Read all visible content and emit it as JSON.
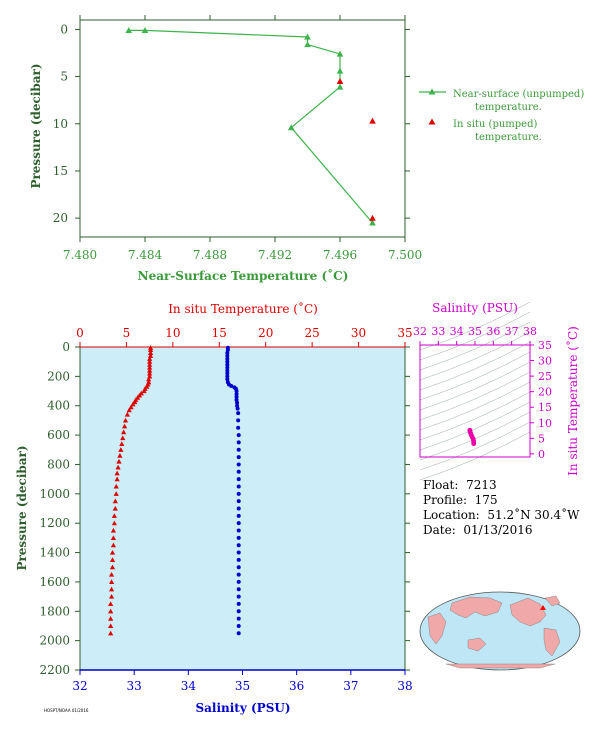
{
  "chart_data": [
    {
      "type": "line",
      "xlabel": "Near-Surface Temperature (˚C)",
      "ylabel": "Pressure (decibar)",
      "xlim": [
        7.48,
        7.5
      ],
      "ylim": [
        22,
        -1
      ],
      "x_ticks": [
        "7.480",
        "7.484",
        "7.488",
        "7.492",
        "7.496",
        "7.500"
      ],
      "y_ticks": [
        "0",
        "5",
        "10",
        "15",
        "20"
      ],
      "legend_position": "right",
      "series": [
        {
          "name": "Near-surface (unpumped) temperature.",
          "color": "#3cb44b",
          "marker": "triangle",
          "points": [
            [
              7.483,
              0.1
            ],
            [
              7.484,
              0.1
            ],
            [
              7.494,
              0.8
            ],
            [
              7.494,
              1.6
            ],
            [
              7.496,
              2.6
            ],
            [
              7.496,
              4.4
            ],
            [
              7.496,
              6.1
            ],
            [
              7.493,
              10.4
            ],
            [
              7.498,
              20.5
            ]
          ]
        },
        {
          "name": "In situ (pumped) temperature.",
          "color": "#dd0000",
          "marker": "triangle",
          "points": [
            [
              7.496,
              5.5
            ],
            [
              7.498,
              9.7
            ],
            [
              7.498,
              20.0
            ]
          ]
        }
      ]
    },
    {
      "type": "scatter",
      "ylabel": "Pressure (decibar)",
      "ylim": [
        2200,
        0
      ],
      "y_ticks": [
        "0",
        "200",
        "400",
        "600",
        "800",
        "1000",
        "1200",
        "1400",
        "1600",
        "1800",
        "2000",
        "2200"
      ],
      "temperature_axis": {
        "label": "In situ Temperature (˚C)",
        "lim": [
          0,
          35
        ],
        "ticks": [
          "0",
          "5",
          "10",
          "15",
          "20",
          "25",
          "30",
          "35"
        ],
        "color": "#dd0000"
      },
      "salinity_axis": {
        "label": "Salinity (PSU)",
        "lim": [
          32,
          38
        ],
        "ticks": [
          "32",
          "33",
          "34",
          "35",
          "36",
          "37",
          "38"
        ],
        "color": "#0000cc"
      },
      "background": "#cdeef8",
      "series": [
        {
          "name": "In situ Temperature",
          "color": "#dd0000",
          "marker": "triangle",
          "points": [
            [
              7.6,
              5
            ],
            [
              7.6,
              20
            ],
            [
              7.6,
              40
            ],
            [
              7.6,
              60
            ],
            [
              7.5,
              80
            ],
            [
              7.5,
              100
            ],
            [
              7.5,
              120
            ],
            [
              7.5,
              140
            ],
            [
              7.5,
              160
            ],
            [
              7.5,
              180
            ],
            [
              7.5,
              200
            ],
            [
              7.4,
              220
            ],
            [
              7.4,
              240
            ],
            [
              7.3,
              255
            ],
            [
              7.2,
              270
            ],
            [
              7.0,
              285
            ],
            [
              6.9,
              300
            ],
            [
              6.6,
              315
            ],
            [
              6.4,
              330
            ],
            [
              6.2,
              345
            ],
            [
              6.0,
              360
            ],
            [
              5.9,
              375
            ],
            [
              5.7,
              390
            ],
            [
              5.5,
              410
            ],
            [
              5.3,
              430
            ],
            [
              5.1,
              460
            ],
            [
              4.9,
              500
            ],
            [
              4.8,
              540
            ],
            [
              4.7,
              580
            ],
            [
              4.6,
              620
            ],
            [
              4.5,
              660
            ],
            [
              4.4,
              700
            ],
            [
              4.3,
              740
            ],
            [
              4.2,
              780
            ],
            [
              4.1,
              820
            ],
            [
              4.0,
              860
            ],
            [
              4.0,
              900
            ],
            [
              3.9,
              950
            ],
            [
              3.9,
              1000
            ],
            [
              3.8,
              1050
            ],
            [
              3.8,
              1100
            ],
            [
              3.7,
              1150
            ],
            [
              3.7,
              1200
            ],
            [
              3.6,
              1250
            ],
            [
              3.6,
              1300
            ],
            [
              3.6,
              1350
            ],
            [
              3.5,
              1400
            ],
            [
              3.5,
              1450
            ],
            [
              3.5,
              1500
            ],
            [
              3.4,
              1550
            ],
            [
              3.4,
              1600
            ],
            [
              3.4,
              1650
            ],
            [
              3.4,
              1700
            ],
            [
              3.3,
              1750
            ],
            [
              3.3,
              1800
            ],
            [
              3.3,
              1850
            ],
            [
              3.3,
              1900
            ],
            [
              3.3,
              1950
            ]
          ]
        },
        {
          "name": "Salinity",
          "color": "#0000cc",
          "marker": "circle",
          "points": [
            [
              34.73,
              5
            ],
            [
              34.73,
              20
            ],
            [
              34.72,
              40
            ],
            [
              34.72,
              60
            ],
            [
              34.72,
              80
            ],
            [
              34.72,
              100
            ],
            [
              34.72,
              120
            ],
            [
              34.72,
              140
            ],
            [
              34.72,
              160
            ],
            [
              34.72,
              180
            ],
            [
              34.72,
              200
            ],
            [
              34.72,
              220
            ],
            [
              34.73,
              240
            ],
            [
              34.75,
              255
            ],
            [
              34.79,
              265
            ],
            [
              34.85,
              275
            ],
            [
              34.88,
              285
            ],
            [
              34.89,
              300
            ],
            [
              34.89,
              320
            ],
            [
              34.89,
              340
            ],
            [
              34.89,
              360
            ],
            [
              34.9,
              380
            ],
            [
              34.9,
              400
            ],
            [
              34.91,
              420
            ],
            [
              34.92,
              450
            ],
            [
              34.92,
              500
            ],
            [
              34.92,
              550
            ],
            [
              34.93,
              600
            ],
            [
              34.93,
              650
            ],
            [
              34.93,
              700
            ],
            [
              34.93,
              750
            ],
            [
              34.93,
              800
            ],
            [
              34.93,
              850
            ],
            [
              34.93,
              900
            ],
            [
              34.93,
              950
            ],
            [
              34.93,
              1000
            ],
            [
              34.93,
              1050
            ],
            [
              34.93,
              1100
            ],
            [
              34.93,
              1150
            ],
            [
              34.93,
              1200
            ],
            [
              34.93,
              1250
            ],
            [
              34.93,
              1300
            ],
            [
              34.93,
              1350
            ],
            [
              34.93,
              1400
            ],
            [
              34.93,
              1450
            ],
            [
              34.93,
              1500
            ],
            [
              34.93,
              1550
            ],
            [
              34.93,
              1600
            ],
            [
              34.93,
              1650
            ],
            [
              34.93,
              1700
            ],
            [
              34.93,
              1750
            ],
            [
              34.93,
              1800
            ],
            [
              34.93,
              1850
            ],
            [
              34.93,
              1900
            ],
            [
              34.93,
              1950
            ]
          ]
        }
      ]
    },
    {
      "type": "scatter",
      "title": "Salinity (PSU)",
      "xlabel": "",
      "ylabel": "In situ Temperature (˚C)",
      "xlim": [
        32,
        38
      ],
      "ylim": [
        -1,
        35
      ],
      "x_ticks": [
        "32",
        "33",
        "34",
        "35",
        "36",
        "37",
        "38"
      ],
      "y_ticks": [
        "0",
        "5",
        "10",
        "15",
        "20",
        "25",
        "30",
        "35"
      ],
      "color": "#cc00cc",
      "points_color": "#ee00aa",
      "points": [
        [
          34.72,
          7.6
        ],
        [
          34.73,
          7.2
        ],
        [
          34.76,
          6.6
        ],
        [
          34.8,
          6.0
        ],
        [
          34.85,
          5.4
        ],
        [
          34.9,
          4.8
        ],
        [
          34.92,
          4.2
        ],
        [
          34.93,
          3.6
        ],
        [
          34.93,
          3.3
        ]
      ]
    }
  ],
  "float_info": {
    "float_label": "Float:",
    "float_value": "7213",
    "profile_label": "Profile:",
    "profile_value": "175",
    "location_label": "Location:",
    "location_value": "51.2˚N  30.4˚W",
    "date_label": "Date:",
    "date_value": "01/13/2016"
  },
  "colors": {
    "axis_green": "#2e5e2e",
    "label_green": "#3a9a3a",
    "temp_red": "#dd0000",
    "sal_blue": "#0000cc",
    "ts_magenta": "#cc00cc",
    "ocean": "#bfe6f5",
    "land": "#f0a8a8"
  },
  "credit": "HOSPT/NOAA 01/2016"
}
